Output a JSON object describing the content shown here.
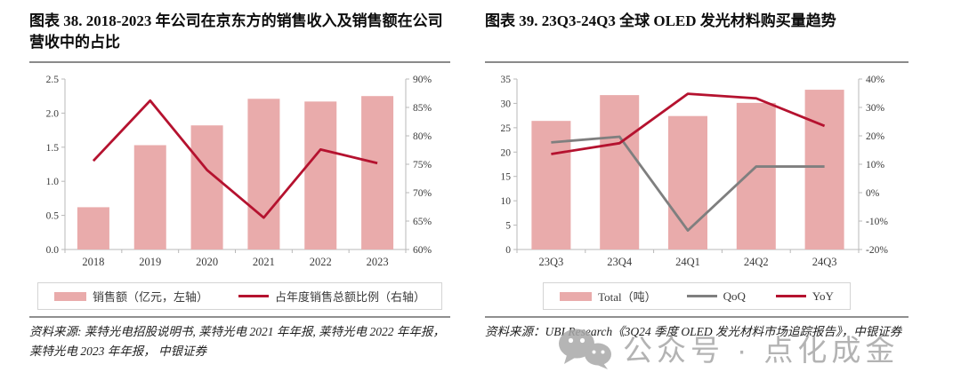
{
  "left_panel": {
    "title": "图表 38. 2018-2023 年公司在京东方的销售收入及销售额在公司营收中的占比",
    "source": "资料来源: 莱特光电招股说明书, 莱特光电 2021 年年报, 莱特光电 2022 年年报， 莱特光电 2023 年年报， 中银证券"
  },
  "right_panel": {
    "title": "图表 39. 23Q3-24Q3 全球 OLED 发光材料购买量趋势",
    "source": "资料来源：UBI Research《3Q24 季度 OLED 发光材料市场追踪报告》，中银证券"
  },
  "watermark": {
    "icon": "wechat-icon",
    "text": "公众号 · 点化成金",
    "color": "#a6a6a6"
  },
  "colors": {
    "bar_pink": "#E9ABAB",
    "line_red": "#B5122F",
    "line_gray": "#7F7F7F",
    "axis_gray": "#b8b8b8"
  },
  "chart_data": [
    {
      "type": "bar",
      "title": "2018-2023 年公司在京东方的销售收入及销售额在公司营收中的占比",
      "categories": [
        "2018",
        "2019",
        "2020",
        "2021",
        "2022",
        "2023"
      ],
      "series": [
        {
          "name": "销售额（亿元，左轴）",
          "kind": "bar",
          "axis": "left",
          "color": "#E9ABAB",
          "values": [
            0.62,
            1.53,
            1.82,
            2.21,
            2.17,
            2.25
          ]
        },
        {
          "name": "占年度销售总额比例（右轴）",
          "kind": "line",
          "axis": "right",
          "color": "#B5122F",
          "values": [
            75.6,
            86.2,
            74.0,
            65.6,
            77.6,
            75.2
          ]
        }
      ],
      "left_axis": {
        "min": 0,
        "max": 2.5,
        "ticks": [
          "0.0",
          "0.5",
          "1.0",
          "1.5",
          "2.0",
          "2.5"
        ]
      },
      "right_axis": {
        "min": 60,
        "max": 90,
        "ticks": [
          "60%",
          "65%",
          "70%",
          "75%",
          "80%",
          "85%",
          "90%"
        ]
      },
      "grid": false,
      "legend_position": "bottom"
    },
    {
      "type": "bar",
      "title": "23Q3-24Q3 全球 OLED 发光材料购买量趋势",
      "categories": [
        "23Q3",
        "23Q4",
        "24Q1",
        "24Q2",
        "24Q3"
      ],
      "series": [
        {
          "name": "Total（吨）",
          "kind": "bar",
          "axis": "left",
          "color": "#E9ABAB",
          "values": [
            26.4,
            31.7,
            27.4,
            30.1,
            32.8
          ]
        },
        {
          "name": "QoQ",
          "kind": "line",
          "axis": "right",
          "color": "#7F7F7F",
          "values": [
            17.7,
            19.7,
            -13.3,
            9.2,
            9.2
          ]
        },
        {
          "name": "YoY",
          "kind": "line",
          "axis": "right",
          "color": "#B5122F",
          "values": [
            13.6,
            17.4,
            34.8,
            33.2,
            23.5
          ]
        }
      ],
      "left_axis": {
        "min": 0,
        "max": 35,
        "ticks": [
          "0",
          "5",
          "10",
          "15",
          "20",
          "25",
          "30",
          "35"
        ]
      },
      "right_axis": {
        "min": -20,
        "max": 40,
        "ticks": [
          "-20%",
          "-10%",
          "0%",
          "10%",
          "20%",
          "30%",
          "40%"
        ]
      },
      "grid": false,
      "legend_position": "bottom"
    }
  ]
}
